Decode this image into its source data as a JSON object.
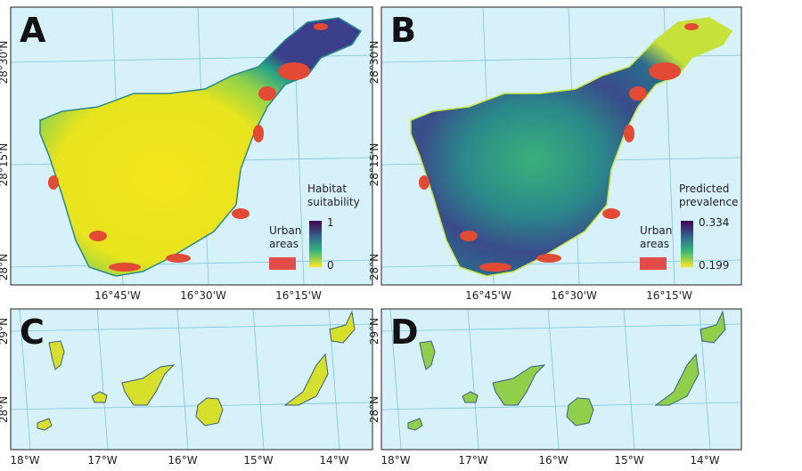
{
  "panels": [
    {
      "letter": "A",
      "lat_labels": [
        "28°30'N",
        "28°15'N",
        "28°N"
      ],
      "lon_labels": [
        "16°45'W",
        "16°30'W",
        "16°15'W"
      ],
      "legend": {
        "title": "Habitat suitability",
        "max": 1,
        "min": 0,
        "urban_label": "Urban areas"
      }
    },
    {
      "letter": "B",
      "lat_labels": [
        "28°30'N",
        "28°15'N",
        "28°N"
      ],
      "lon_labels": [
        "16°45'W",
        "16°30'W",
        "16°15'W"
      ],
      "legend": {
        "title": "Predicted prevalence",
        "max": 0.334,
        "min": 0.199,
        "urban_label": "Urban areas"
      }
    },
    {
      "letter": "C",
      "lat_labels": [
        "29°N",
        "28°N"
      ],
      "lon_labels": [
        "18°W",
        "17°W",
        "16°W",
        "15°W",
        "14°W"
      ]
    },
    {
      "letter": "D",
      "lat_labels": [
        "29°N",
        "28°N"
      ],
      "lon_labels": [
        "18°W",
        "17°W",
        "16°W",
        "15°W",
        "14°W"
      ]
    }
  ]
}
